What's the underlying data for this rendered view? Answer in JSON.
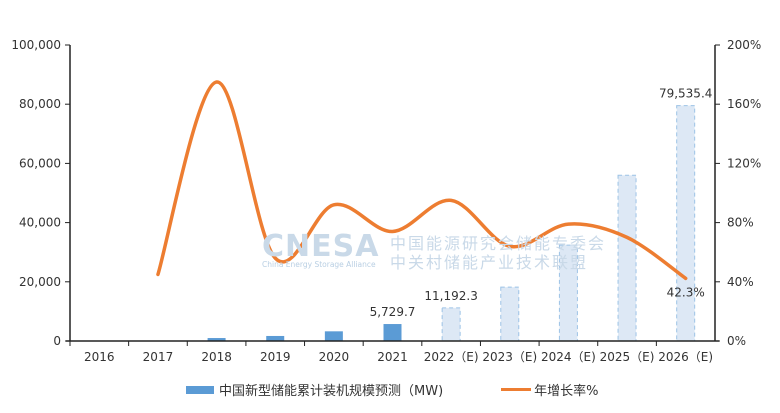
{
  "chart_data": {
    "type": "bar+line",
    "title": "",
    "categories": [
      "2016",
      "2017",
      "2018",
      "2019",
      "2020",
      "2021",
      "2022（E)",
      "2023（E)",
      "2024（E)",
      "2025（E)",
      "2026（E)"
    ],
    "series": [
      {
        "name": "中国新型储能累计装机规模预测（MW)",
        "type": "bar",
        "axis": "left",
        "color": "#5b9bd5",
        "forecast_color": "#dde8f5",
        "values": [
          0,
          0,
          1000,
          1700,
          3270,
          5729.7,
          11192.3,
          18200,
          32400,
          56000,
          79535.4
        ],
        "forecast_from_index": 6,
        "data_labels": {
          "5": "5,729.7",
          "6": "11,192.3",
          "10": "79,535.4"
        }
      },
      {
        "name": "年增长率%",
        "type": "line",
        "axis": "right",
        "color": "#ed7d31",
        "smooth": true,
        "values": [
          null,
          45,
          175,
          56,
          92,
          74,
          95,
          64,
          79,
          70,
          42.3
        ],
        "data_labels": {
          "10": "42.3%"
        }
      }
    ],
    "y_left": {
      "ticks": [
        "0",
        "20,000",
        "40,000",
        "60,000",
        "80,000",
        "100,000"
      ],
      "ylim": [
        0,
        100000
      ]
    },
    "y_right": {
      "ticks": [
        "0%",
        "40%",
        "80%",
        "120%",
        "160%",
        "200%"
      ],
      "ylim": [
        0,
        200
      ]
    },
    "xlabel": "",
    "ylabel": "",
    "grid": false,
    "legend_position": "bottom"
  },
  "legend": {
    "bar_label": "中国新型储能累计装机规模预测（MW)",
    "line_label": "年增长率%"
  },
  "watermark": {
    "logo": "CNESA",
    "subtitle": "China Energy Storage Alliance",
    "cn_line1": "中国能源研究会储能专委会",
    "cn_line2": "中关村储能产业技术联盟"
  }
}
